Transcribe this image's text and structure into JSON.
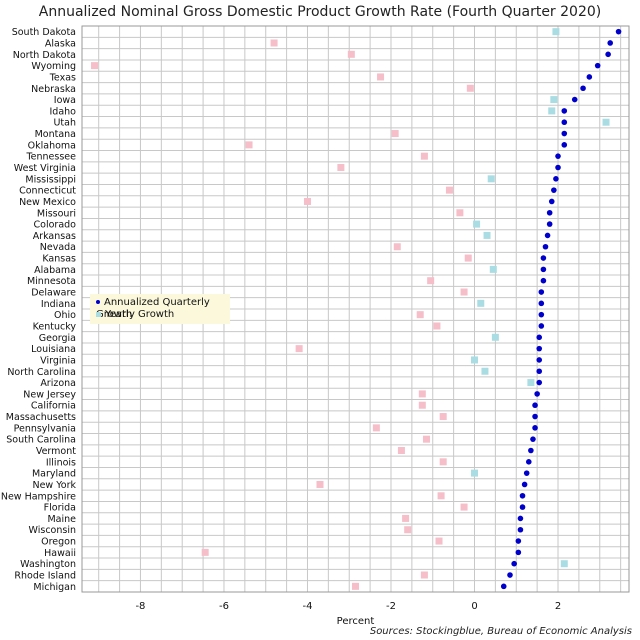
{
  "chart_data": {
    "type": "scatter",
    "title": "Annualized Nominal Gross Domestic Product Growth Rate (Fourth Quarter 2020)",
    "xlabel": "Percent",
    "ylabel": "",
    "xlim": [
      -9.4,
      3.7
    ],
    "xticks": [
      -8,
      -6,
      -4,
      -2,
      0,
      2
    ],
    "grid": true,
    "legend_placement": "middle-left",
    "categories": [
      "South Dakota",
      "Alaska",
      "North Dakota",
      "Wyoming",
      "Texas",
      "Nebraska",
      "Iowa",
      "Idaho",
      "Utah",
      "Montana",
      "Oklahoma",
      "Tennessee",
      "West Virginia",
      "Mississippi",
      "Connecticut",
      "New Mexico",
      "Missouri",
      "Colorado",
      "Arkansas",
      "Nevada",
      "Kansas",
      "Alabama",
      "Minnesota",
      "Delaware",
      "Indiana",
      "Ohio",
      "Kentucky",
      "Georgia",
      "Louisiana",
      "Virginia",
      "North Carolina",
      "Arizona",
      "New Jersey",
      "California",
      "Massachusetts",
      "Pennsylvania",
      "South Carolina",
      "Vermont",
      "Illinois",
      "Maryland",
      "New York",
      "New Hampshire",
      "Florida",
      "Maine",
      "Wisconsin",
      "Oregon",
      "Hawaii",
      "Washington",
      "Rhode Island",
      "Michigan"
    ],
    "series": [
      {
        "name": "Annualized Quarterly Growth",
        "marker": "dot",
        "color": "#0000cc",
        "values": [
          3.45,
          3.25,
          3.2,
          2.95,
          2.75,
          2.6,
          2.4,
          2.15,
          2.15,
          2.15,
          2.15,
          2.0,
          2.0,
          1.95,
          1.9,
          1.85,
          1.8,
          1.8,
          1.75,
          1.7,
          1.65,
          1.65,
          1.65,
          1.6,
          1.6,
          1.6,
          1.6,
          1.55,
          1.55,
          1.55,
          1.55,
          1.55,
          1.5,
          1.45,
          1.45,
          1.45,
          1.4,
          1.35,
          1.3,
          1.25,
          1.2,
          1.15,
          1.15,
          1.1,
          1.1,
          1.05,
          1.05,
          0.95,
          0.85,
          0.7
        ]
      },
      {
        "name": "Yearly Growth",
        "marker": "square",
        "color": "#a9dde3",
        "negative_color": "#f6bec8",
        "values": [
          1.95,
          -4.8,
          -2.95,
          -9.1,
          -2.25,
          -0.1,
          1.9,
          1.85,
          3.15,
          -1.9,
          -5.4,
          -1.2,
          -3.2,
          0.4,
          -0.6,
          -4.0,
          -0.35,
          0.05,
          0.3,
          -1.85,
          -0.15,
          0.45,
          -1.05,
          -0.25,
          0.15,
          -1.3,
          -0.9,
          0.5,
          -4.2,
          0.0,
          0.25,
          1.35,
          -1.25,
          -1.25,
          -0.75,
          -2.35,
          -1.15,
          -1.75,
          -0.75,
          0.0,
          -3.7,
          -0.8,
          -0.25,
          -1.65,
          -1.6,
          -0.85,
          -6.45,
          2.15,
          -1.2,
          -2.85
        ]
      }
    ]
  },
  "source_note": "Sources: Stockingblue, Bureau of Economic Analysis"
}
